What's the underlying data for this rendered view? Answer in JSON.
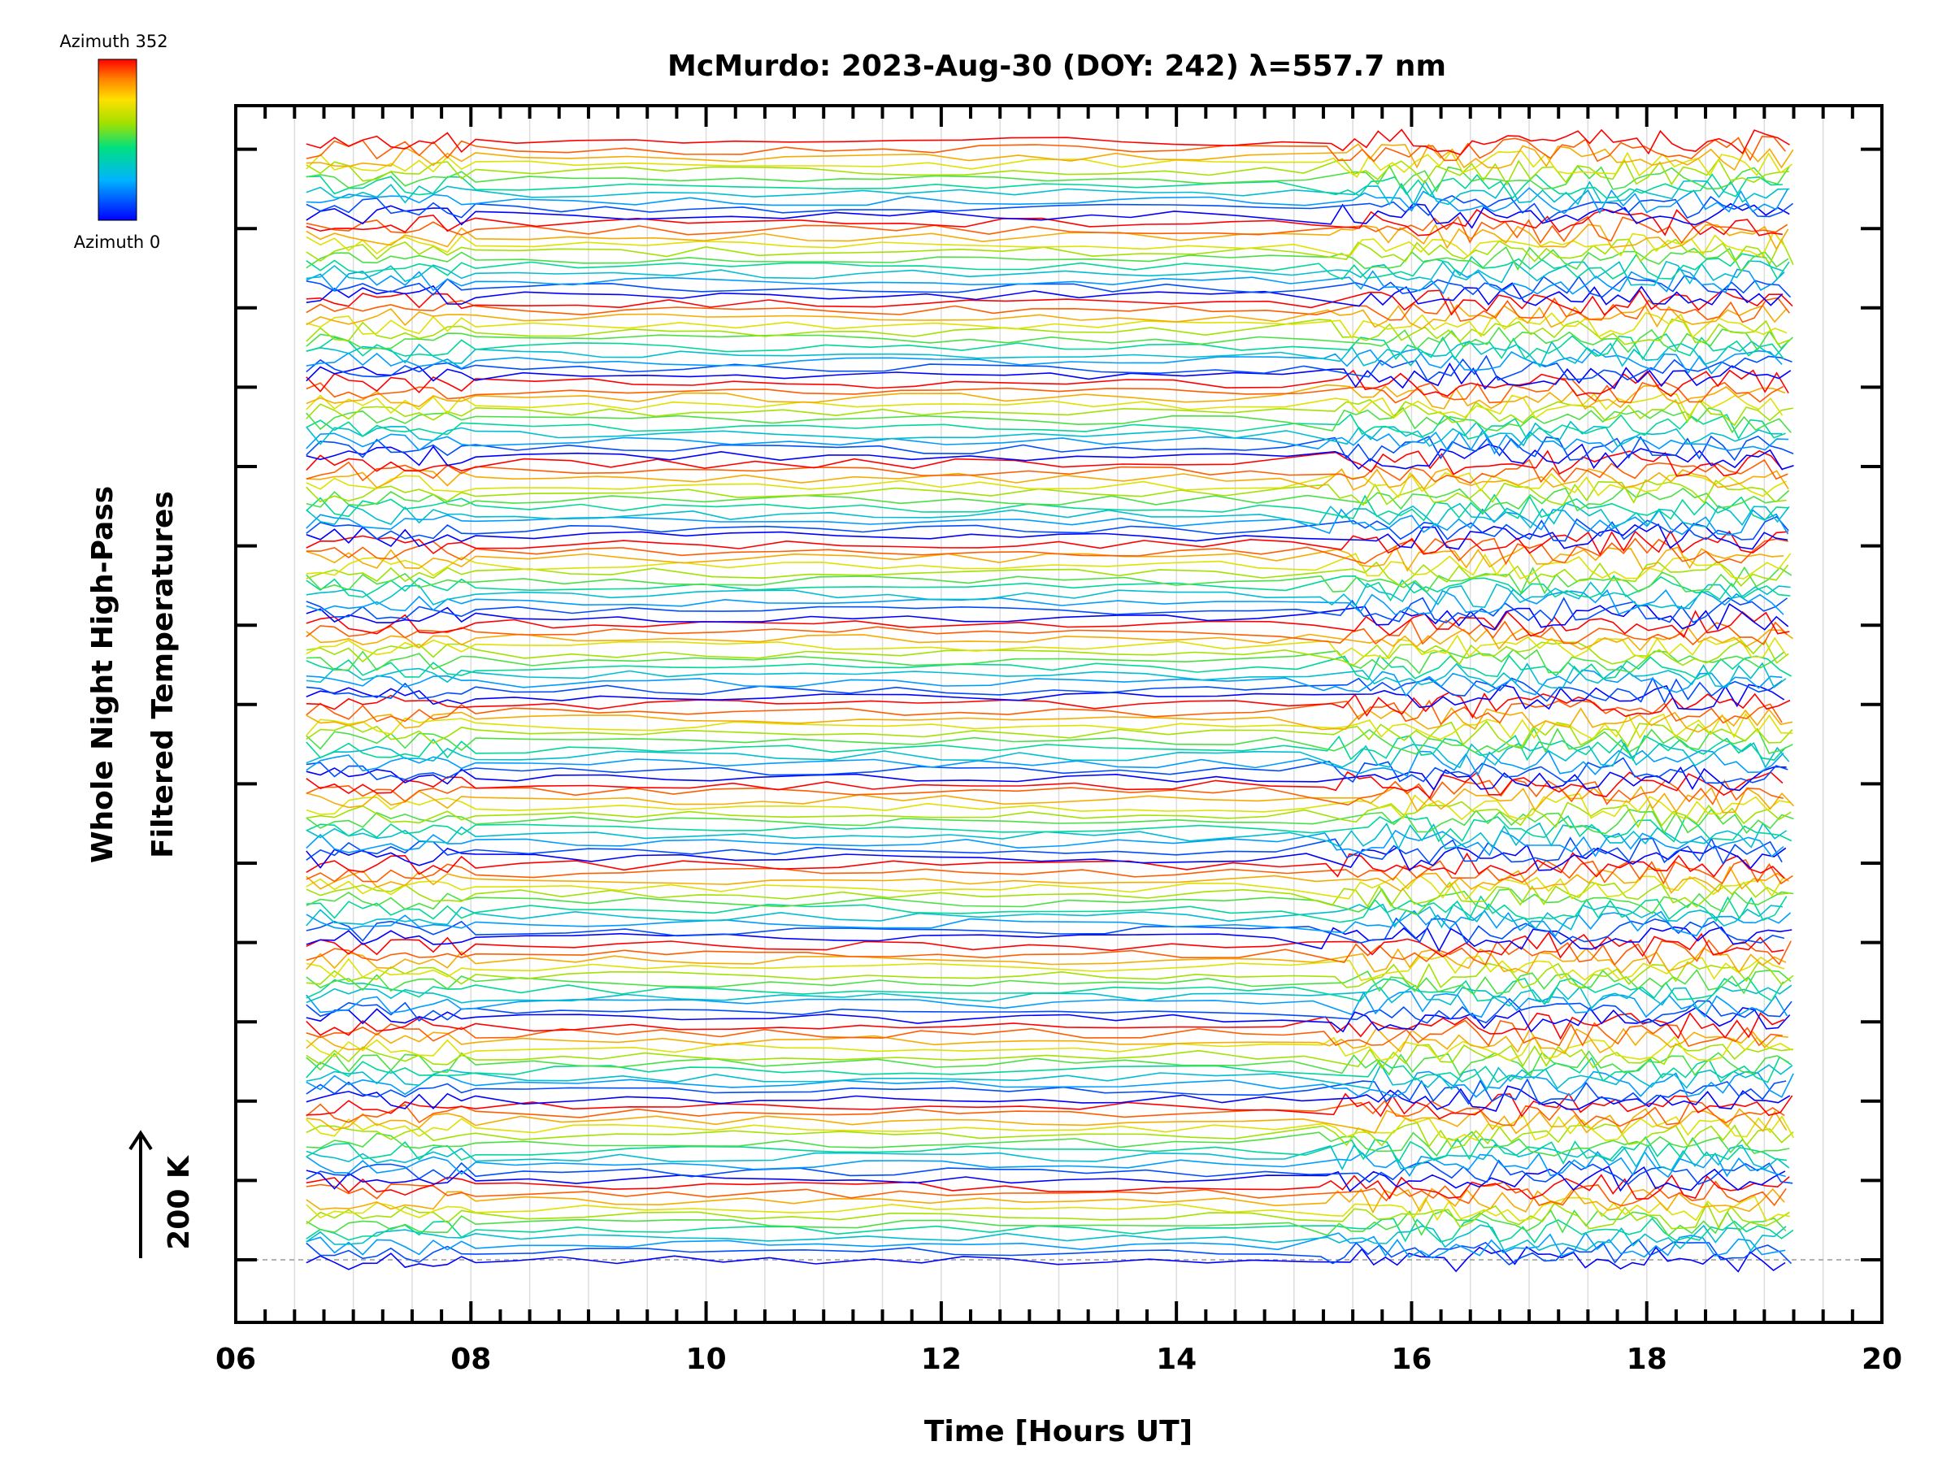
{
  "chart_data": {
    "type": "line",
    "title": "McMurdo: 2023-Aug-30 (DOY: 242) λ=557.7 nm",
    "xlabel": "Time [Hours UT]",
    "ylabel_line1": "Whole Night High-Pass",
    "ylabel_line2": "Filtered Temperatures",
    "scale_label": "200 K",
    "xlim": [
      6,
      20
    ],
    "x_tick_labels": [
      "06",
      "08",
      "10",
      "12",
      "14",
      "16",
      "18",
      "20"
    ],
    "x_tick_values": [
      6,
      8,
      10,
      12,
      14,
      16,
      18,
      20
    ],
    "y_major_tick_count": 15,
    "colorbar": {
      "top_label": "Azimuth 352",
      "bottom_label": "Azimuth 0",
      "min_azimuth": 0,
      "max_azimuth": 352
    },
    "data_time_range": [
      6.6,
      19.25
    ],
    "azimuth_groups": 14,
    "traces_per_group": 11,
    "offset_per_trace_note": "Traces vertically stacked; each group spans azimuth 0 to 352 (blue to red)",
    "series": [
      {
        "name": "group-1",
        "azimuth_range": [
          0,
          352
        ]
      },
      {
        "name": "group-2",
        "azimuth_range": [
          0,
          352
        ]
      },
      {
        "name": "group-3",
        "azimuth_range": [
          0,
          352
        ]
      },
      {
        "name": "group-4",
        "azimuth_range": [
          0,
          352
        ]
      },
      {
        "name": "group-5",
        "azimuth_range": [
          0,
          352
        ]
      },
      {
        "name": "group-6",
        "azimuth_range": [
          0,
          352
        ]
      },
      {
        "name": "group-7",
        "azimuth_range": [
          0,
          352
        ]
      },
      {
        "name": "group-8",
        "azimuth_range": [
          0,
          352
        ]
      },
      {
        "name": "group-9",
        "azimuth_range": [
          0,
          352
        ]
      },
      {
        "name": "group-10",
        "azimuth_range": [
          0,
          352
        ]
      },
      {
        "name": "group-11",
        "azimuth_range": [
          0,
          352
        ]
      },
      {
        "name": "group-12",
        "azimuth_range": [
          0,
          352
        ]
      },
      {
        "name": "group-13",
        "azimuth_range": [
          0,
          352
        ]
      },
      {
        "name": "group-14",
        "azimuth_range": [
          0,
          352
        ]
      }
    ]
  }
}
